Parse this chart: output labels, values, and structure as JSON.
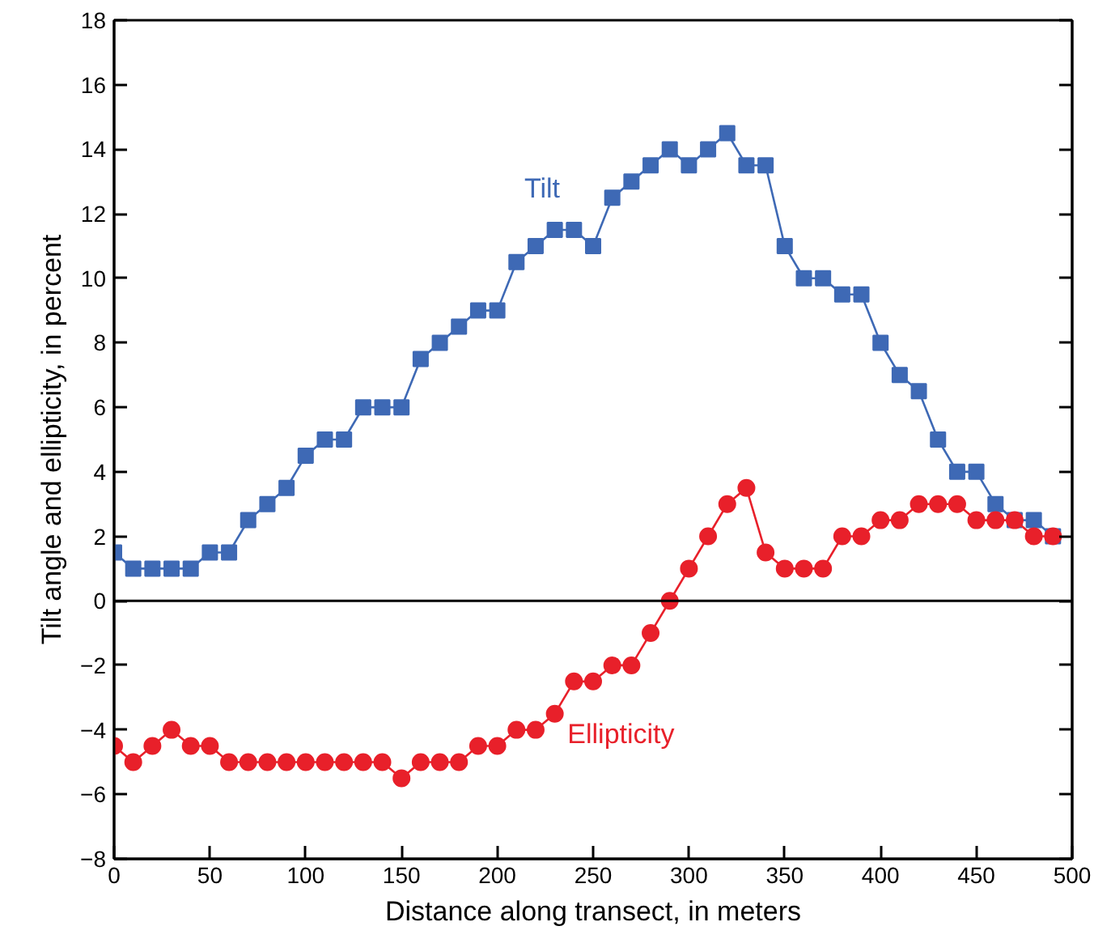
{
  "chart_data": {
    "type": "line",
    "xlabel": "Distance along transect, in meters",
    "ylabel": "Tilt angle and ellipticity, in percent",
    "x": [
      0,
      10,
      20,
      30,
      40,
      50,
      60,
      70,
      80,
      90,
      100,
      110,
      120,
      130,
      140,
      150,
      160,
      170,
      180,
      190,
      200,
      210,
      220,
      230,
      240,
      250,
      260,
      270,
      280,
      290,
      300,
      310,
      320,
      330,
      340,
      350,
      360,
      370,
      380,
      390,
      400,
      410,
      420,
      430,
      440,
      450,
      460,
      470,
      480,
      490
    ],
    "series": [
      {
        "name": "Tilt",
        "color": "#3e69b5",
        "marker": "square",
        "values": [
          1.5,
          1,
          1,
          1,
          1,
          1.5,
          1.5,
          2.5,
          3,
          3.5,
          4.5,
          5,
          5,
          6,
          6,
          6,
          7.5,
          8,
          8.5,
          9,
          9,
          10.5,
          11,
          11.5,
          11.5,
          11,
          12.5,
          13,
          13.5,
          14,
          13.5,
          14,
          14.5,
          13.5,
          13.5,
          11,
          10,
          10,
          9.5,
          9.5,
          8,
          7,
          6.5,
          5,
          4,
          4,
          3,
          2.5,
          2.5,
          2
        ]
      },
      {
        "name": "Ellipticity",
        "color": "#e8202a",
        "marker": "circle",
        "values": [
          -4.5,
          -5,
          -4.5,
          -4,
          -4.5,
          -4.5,
          -5,
          -5,
          -5,
          -5,
          -5,
          -5,
          -5,
          -5,
          -5,
          -5.5,
          -5,
          -5,
          -5,
          -4.5,
          -4.5,
          -4,
          -4,
          -3.5,
          -2.5,
          -2.5,
          -2,
          -2,
          -1,
          0,
          1,
          2,
          3,
          3.5,
          1.5,
          1,
          1,
          1,
          2,
          2,
          2.5,
          2.5,
          3,
          3,
          3,
          2.5,
          2.5,
          2.5,
          2,
          2
        ]
      }
    ],
    "xlim": [
      0,
      500
    ],
    "xticks": [
      0,
      50,
      100,
      150,
      200,
      250,
      300,
      350,
      400,
      450,
      500
    ],
    "ylim": [
      -8,
      18
    ],
    "yticks": [
      -8,
      -6,
      -4,
      -2,
      0,
      2,
      4,
      6,
      8,
      10,
      12,
      14,
      16,
      18
    ],
    "ref_lines": [
      {
        "axis": "y",
        "value": 0,
        "color": "#000000"
      }
    ],
    "grid": false,
    "line_style": "solid"
  }
}
